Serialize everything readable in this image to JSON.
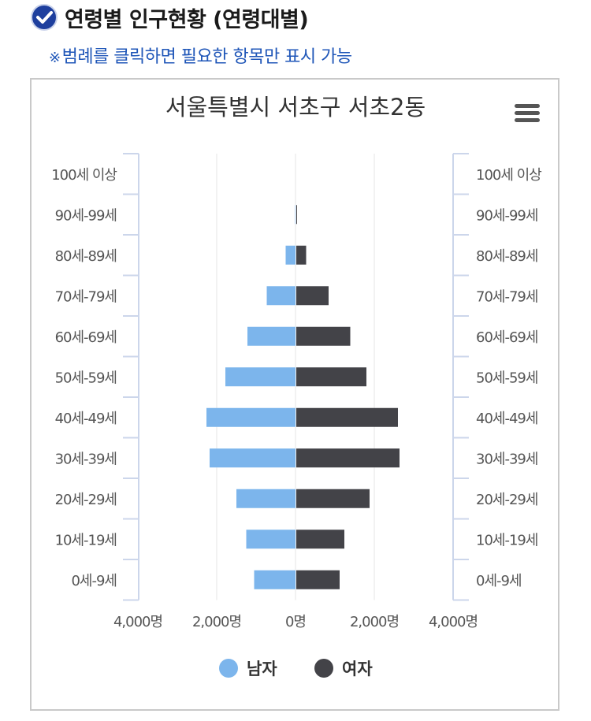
{
  "header": {
    "title": "연령별 인구현황 (연령대별)",
    "notice_mark": "※",
    "notice_text": "범례를 클릭하면 필요한 항목만 표시 가능"
  },
  "colors": {
    "male": "#7cb5ec",
    "female": "#434348",
    "accent": "#1f56b8",
    "grid": "#e6e6e6",
    "axis": "#ccd6eb"
  },
  "icons": {
    "header": "check-circle-icon",
    "menu": "hamburger-menu-icon"
  },
  "chart_data": {
    "type": "bar",
    "orientation": "horizontal-population-pyramid",
    "title": "서울특별시 서초구 서초2동",
    "categories": [
      "100세 이상",
      "90세-99세",
      "80세-89세",
      "70세-79세",
      "60세-69세",
      "50세-59세",
      "40세-49세",
      "30세-39세",
      "20세-29세",
      "10세-19세",
      "0세-9세"
    ],
    "series": [
      {
        "name": "남자",
        "color": "#7cb5ec",
        "side": "left",
        "values": [
          0,
          10,
          250,
          730,
          1220,
          1780,
          2260,
          2180,
          1500,
          1250,
          1050
        ]
      },
      {
        "name": "여자",
        "color": "#434348",
        "side": "right",
        "values": [
          0,
          20,
          250,
          820,
          1370,
          1780,
          2580,
          2620,
          1860,
          1220,
          1100
        ]
      }
    ],
    "x_axis": {
      "ticks": [
        "4,000명",
        "2,000명",
        "0명",
        "2,000명",
        "4,000명"
      ],
      "range": [
        -4000,
        4000
      ]
    },
    "grid": true,
    "legend": {
      "position": "bottom-center",
      "items": [
        "남자",
        "여자"
      ]
    }
  }
}
